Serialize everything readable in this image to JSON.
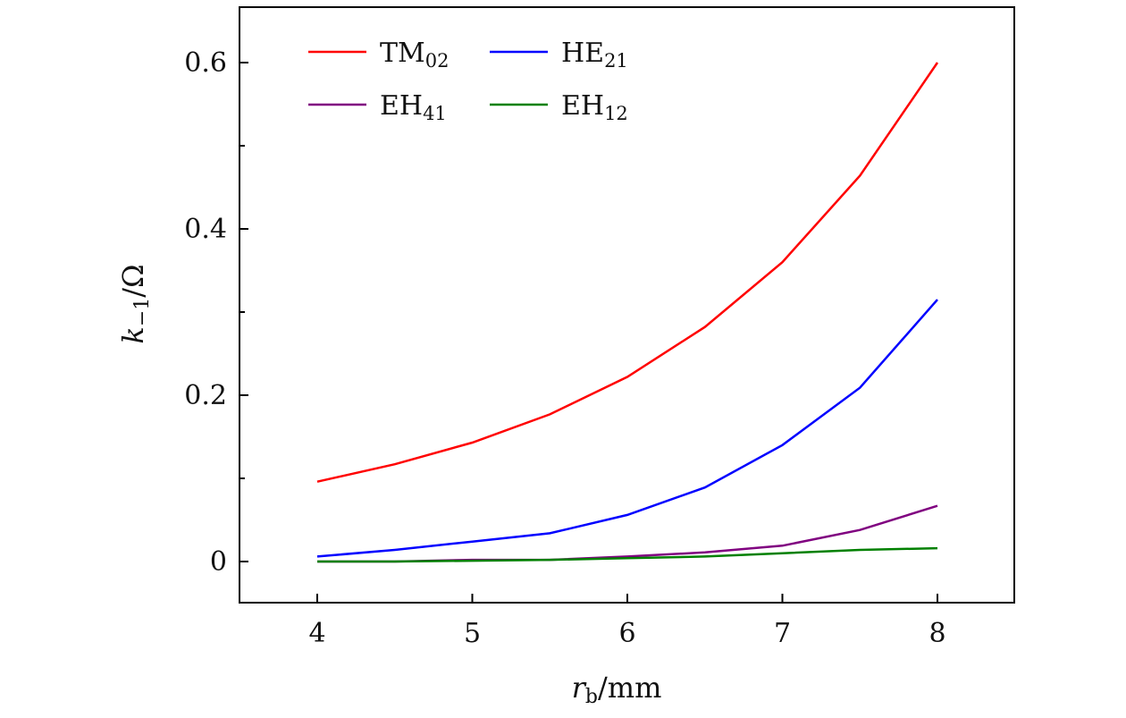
{
  "chart_data": {
    "type": "line",
    "title": "",
    "xlabel": "r_b/mm",
    "xlabel_parts": {
      "main": "r",
      "sub": "b",
      "rest": "/mm"
    },
    "ylabel": "k_-1/Ω",
    "ylabel_parts": {
      "main": "k",
      "sub": "−1",
      "rest": "/Ω"
    },
    "xlim": [
      3.5,
      8.5
    ],
    "ylim": [
      -0.05,
      0.667
    ],
    "xticks": [
      4,
      5,
      6,
      7,
      8
    ],
    "xtick_labels": [
      "4",
      "5",
      "6",
      "7",
      "8"
    ],
    "yticks": [
      0,
      0.2,
      0.4,
      0.6
    ],
    "ytick_labels": [
      "0",
      "0.2",
      "0.4",
      "0.6"
    ],
    "yminor_ticks": [
      0.1,
      0.3,
      0.5
    ],
    "grid": false,
    "legend_placement": "top-left",
    "x": [
      4,
      4.5,
      5,
      5.5,
      6,
      6.5,
      7,
      7.5,
      8
    ],
    "series": [
      {
        "name": "TM02",
        "label_main": "TM",
        "label_sub": "02",
        "color": "#ff0000",
        "values": [
          0.096,
          0.117,
          0.143,
          0.177,
          0.222,
          0.282,
          0.36,
          0.464,
          0.6
        ]
      },
      {
        "name": "HE21",
        "label_main": "HE",
        "label_sub": "21",
        "color": "#0000ff",
        "values": [
          0.006,
          0.014,
          0.024,
          0.034,
          0.056,
          0.089,
          0.14,
          0.209,
          0.315
        ]
      },
      {
        "name": "EH41",
        "label_main": "EH",
        "label_sub": "41",
        "color": "#800080",
        "values": [
          0.0,
          0.0,
          0.002,
          0.002,
          0.006,
          0.011,
          0.019,
          0.038,
          0.067
        ]
      },
      {
        "name": "EH12",
        "label_main": "EH",
        "label_sub": "12",
        "color": "#008000",
        "values": [
          0.0,
          0.0,
          0.001,
          0.002,
          0.004,
          0.006,
          0.01,
          0.014,
          0.016
        ]
      }
    ]
  }
}
